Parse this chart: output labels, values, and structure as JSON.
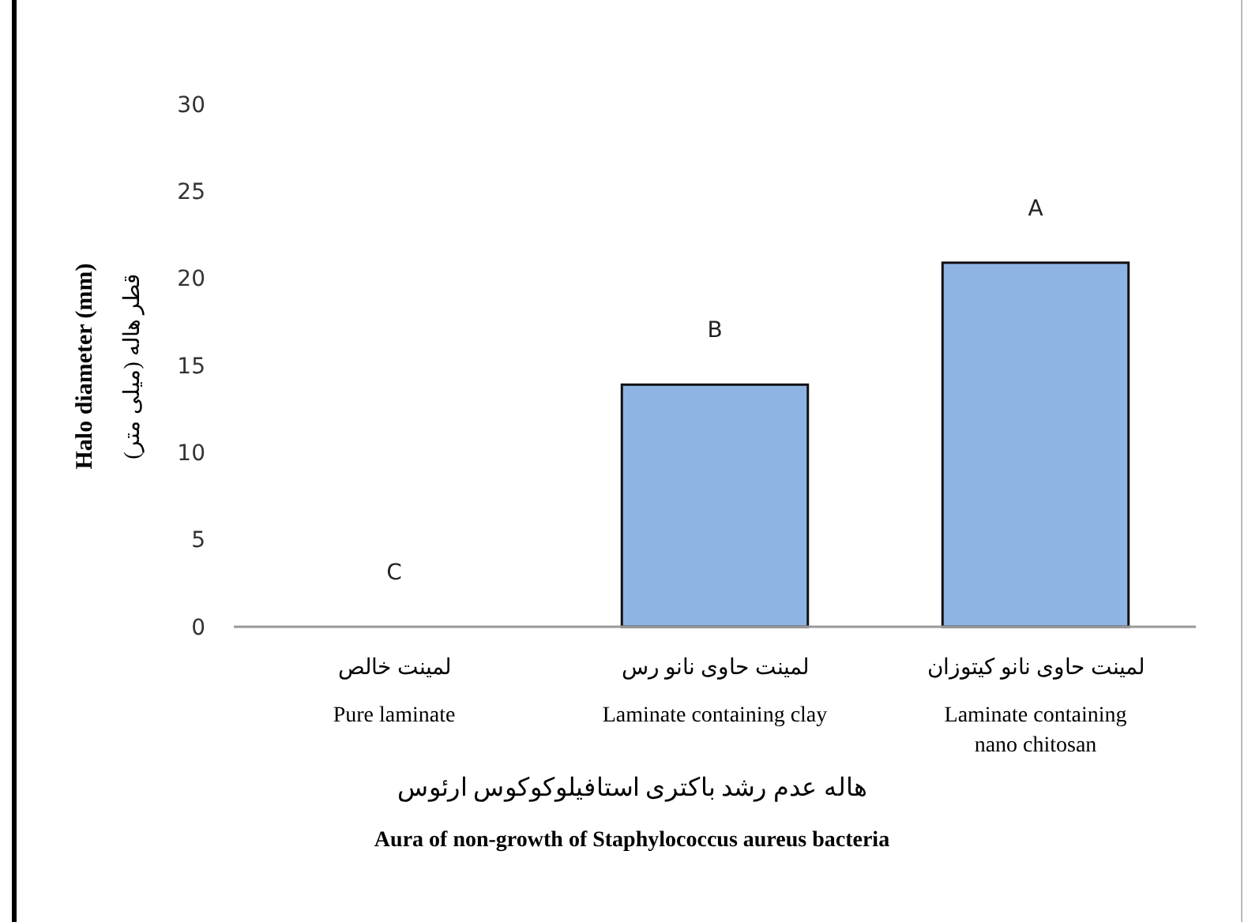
{
  "chart_data": {
    "type": "bar",
    "xlabel": "هاله عدم رشد باکتری استافیلوکوکوس ارئوس\nAura of non-growth of Staphylococcus aureus bacteria",
    "ylabel": "Halo diameter (mm)\nقطر هاله (میلی متر)",
    "categories": [
      "لمینت خالص\nPure laminate",
      "لمینت حاوی نانو رس\nLaminate containing clay",
      "لمینت حاوی نانو کیتوزان\nLaminate containing\nnano chitosan"
    ],
    "values": [
      0,
      13.9,
      20.9
    ],
    "color": "#8eb4e3",
    "ylim": [
      0,
      30
    ],
    "yticks": [
      0,
      5,
      10,
      15,
      20,
      25,
      30
    ],
    "annotations": [
      {
        "text": "C",
        "x": "لمینت خالص\nPure laminate",
        "y": 0
      },
      {
        "text": "B",
        "x": "لمینت حاوی نانو رس\nLaminate containing clay",
        "y": 13.9
      },
      {
        "text": "A",
        "x": "لمینت حاوی نانو کیتوزان\nLaminate containing\nnano chitosan",
        "y": 20.9
      }
    ]
  }
}
